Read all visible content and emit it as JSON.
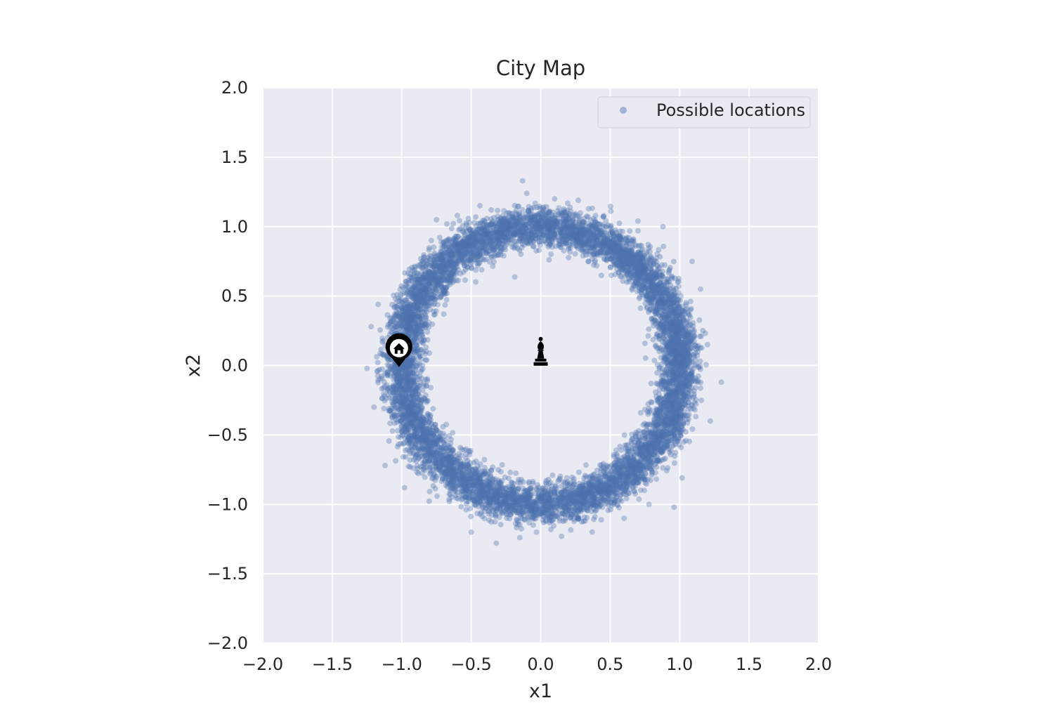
{
  "chart_data": {
    "type": "scatter",
    "title": "City Map",
    "xlabel": "x1",
    "ylabel": "x2",
    "xlim": [
      -2.0,
      2.0
    ],
    "ylim": [
      -2.0,
      2.0
    ],
    "x_ticks": [
      "−2.0",
      "−1.5",
      "−1.0",
      "−0.5",
      "0.0",
      "0.5",
      "1.0",
      "1.5",
      "2.0"
    ],
    "y_ticks": [
      "2.0",
      "1.5",
      "1.0",
      "0.5",
      "0.0",
      "−0.5",
      "−1.0",
      "−1.5",
      "−2.0"
    ],
    "x_tick_values": [
      -2.0,
      -1.5,
      -1.0,
      -0.5,
      0.0,
      0.5,
      1.0,
      1.5,
      2.0
    ],
    "y_tick_values": [
      2.0,
      1.5,
      1.0,
      0.5,
      0.0,
      -0.5,
      -1.0,
      -1.5,
      -2.0
    ],
    "grid": true,
    "legend_placement": "upper right",
    "series": [
      {
        "name": "Possible locations",
        "color": "#4c72b0",
        "opacity": 0.35,
        "distribution": {
          "shape": "ring",
          "center": [
            0.0,
            0.0
          ],
          "mean_radius": 1.0,
          "radius_std": 0.07,
          "approx_points": 9000
        },
        "points": [
          [
            -0.13,
            1.33
          ],
          [
            -0.1,
            1.24
          ],
          [
            0.1,
            1.2
          ],
          [
            0.27,
            1.19
          ],
          [
            -0.75,
            1.05
          ],
          [
            0.7,
            1.04
          ],
          [
            0.88,
            1.0
          ],
          [
            1.09,
            0.75
          ],
          [
            1.15,
            0.55
          ],
          [
            -1.22,
            0.28
          ],
          [
            -1.25,
            -0.02
          ],
          [
            1.3,
            -0.12
          ],
          [
            1.22,
            -0.4
          ],
          [
            -1.12,
            -0.72
          ],
          [
            -0.98,
            -0.88
          ],
          [
            0.96,
            -1.02
          ],
          [
            -0.5,
            -1.2
          ],
          [
            -0.32,
            -1.28
          ],
          [
            -0.15,
            -1.24
          ],
          [
            0.15,
            -1.23
          ],
          [
            0.37,
            -1.2
          ],
          [
            0.6,
            -1.1
          ],
          [
            0.78,
            -1.0
          ],
          [
            -0.03,
            -1.2
          ],
          [
            1.2,
            0.15
          ],
          [
            -1.2,
            -0.3
          ],
          [
            -1.17,
            0.44
          ],
          [
            1.03,
            -0.55
          ],
          [
            -0.6,
            1.08
          ],
          [
            0.45,
            1.07
          ]
        ]
      }
    ],
    "markers": [
      {
        "name": "home",
        "icon": "home-pin-icon",
        "x": -1.02,
        "y": 0.12,
        "color": "#000000"
      },
      {
        "name": "bishop",
        "icon": "chess-bishop-icon",
        "x": 0.0,
        "y": 0.12,
        "color": "#000000"
      }
    ],
    "colors": {
      "plot_background": "#eaeaf2",
      "grid": "#ffffff",
      "point": "#4c72b0",
      "text": "#262626"
    }
  }
}
